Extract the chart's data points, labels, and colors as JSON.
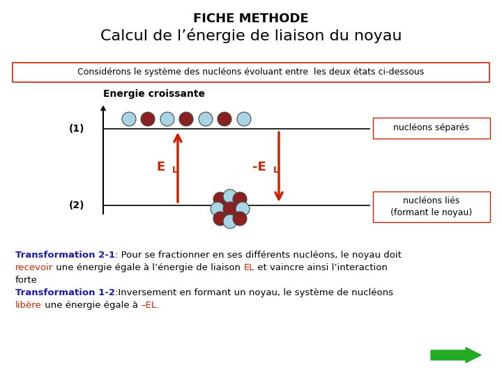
{
  "title_line1": "FICHE METHODE",
  "title_line2": "Calcul de l’énergie de liaison du noyau",
  "box_text": "Considérons le système des nucléons évoluant entre  les deux états ci-dessous",
  "energy_label": "Energie croissante",
  "label1": "(1)",
  "label2": "(2)",
  "box1_text": "nucléons séparés",
  "box2_line1": "nucléons liés",
  "box2_line2": "(formant le noyau)",
  "text_lines": [
    [
      {
        "text": "Transformation 2-1",
        "color": "#1a1aaa",
        "bold": true
      },
      {
        "text": ": Pour se fractionner en ses différents nucléons, le noyau doit",
        "color": "#000000",
        "bold": false
      }
    ],
    [
      {
        "text": "recevoir",
        "color": "#cc2200",
        "bold": false
      },
      {
        "text": " une énergie égale à l’énergie de liaison ",
        "color": "#000000",
        "bold": false
      },
      {
        "text": "EL",
        "color": "#cc2200",
        "bold": false
      },
      {
        "text": " et vaincre ainsi l’interaction",
        "color": "#000000",
        "bold": false
      }
    ],
    [
      {
        "text": "forte",
        "color": "#000000",
        "bold": false
      }
    ],
    [
      {
        "text": "Transformation 1-2",
        "color": "#1a1aaa",
        "bold": true
      },
      {
        "text": ":Inversement en formant un noyau, le système de nucléons",
        "color": "#000000",
        "bold": false
      }
    ],
    [
      {
        "text": "libère",
        "color": "#cc2200",
        "bold": false
      },
      {
        "text": " une énergie égale à ",
        "color": "#000000",
        "bold": false
      },
      {
        "text": "–EL.",
        "color": "#cc2200",
        "bold": false
      }
    ]
  ],
  "bg_color": "#ffffff",
  "arrow_color": "#cc2200",
  "proton_color": "#8B2020",
  "neutron_color": "#a8d4e6",
  "title1_fontsize": 13,
  "title2_fontsize": 16,
  "text_fontsize": 9.5
}
